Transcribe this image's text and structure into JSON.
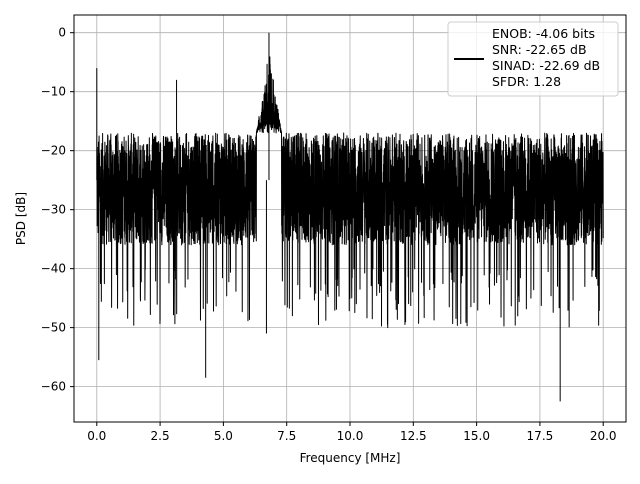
{
  "chart_data": {
    "type": "line",
    "title": "",
    "xlabel": "Frequency [MHz]",
    "ylabel": "PSD [dB]",
    "xlim": [
      -0.9,
      20.9
    ],
    "ylim": [
      -66,
      3
    ],
    "xticks": [
      0.0,
      2.5,
      5.0,
      7.5,
      10.0,
      12.5,
      15.0,
      17.5,
      20.0
    ],
    "xtick_labels": [
      "0.0",
      "2.5",
      "5.0",
      "7.5",
      "10.0",
      "12.5",
      "15.0",
      "17.5",
      "20.0"
    ],
    "yticks": [
      0,
      -10,
      -20,
      -30,
      -40,
      -50,
      -60
    ],
    "ytick_labels": [
      "0",
      "−10",
      "−20",
      "−30",
      "−40",
      "−50",
      "−60"
    ],
    "grid": true,
    "legend_position": "top-right",
    "series": [
      {
        "name": "",
        "color": "#000000",
        "x_range": [
          0.0,
          20.0
        ],
        "noise_floor_band": [
          -36,
          -17
        ],
        "peak": {
          "x": 6.8,
          "y": 0.0
        },
        "spikes": [
          {
            "x": 0.0,
            "y": -6.0
          },
          {
            "x": 0.08,
            "y": -55.5
          },
          {
            "x": 3.15,
            "y": -8.0
          },
          {
            "x": 4.3,
            "y": -58.5
          },
          {
            "x": 6.7,
            "y": -51.0
          },
          {
            "x": 18.3,
            "y": -62.5
          }
        ]
      }
    ],
    "legend_entries": [
      "ENOB: -4.06 bits",
      "SNR: -22.65 dB",
      "SINAD: -22.69 dB",
      "SFDR: 1.28"
    ]
  }
}
